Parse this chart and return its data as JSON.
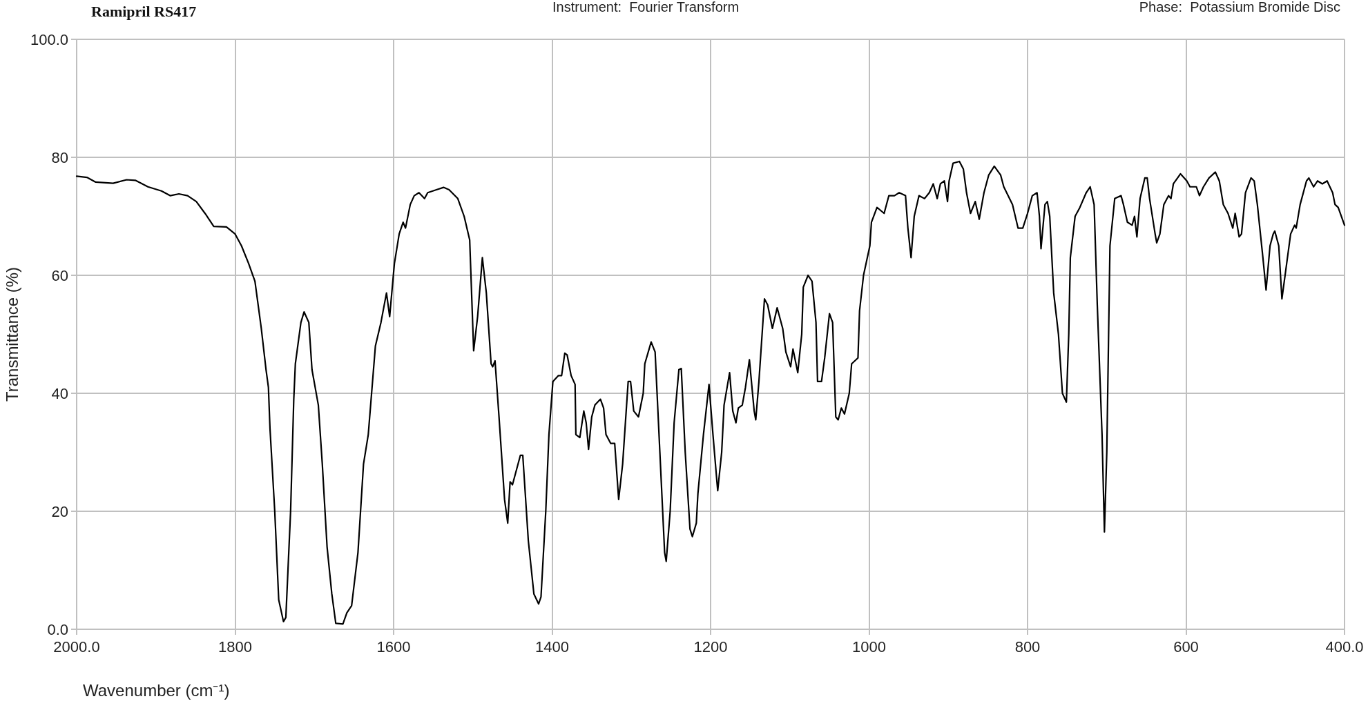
{
  "chart_data": {
    "type": "line",
    "title": "Ramipril RS417",
    "annotations": [
      "Instrument:  Fourier Transform",
      "Phase:  Potassium Bromide Disc"
    ],
    "xlabel": "Wavenumber (cm⁻¹)",
    "ylabel": "Transmittance (%)",
    "xlim": [
      2000,
      400
    ],
    "ylim": [
      0,
      100
    ],
    "xticks": [
      {
        "value": 2000,
        "label": "2000.0"
      },
      1800,
      1600,
      1400,
      1200,
      1000,
      800,
      600,
      {
        "value": 400,
        "label": "400.0"
      }
    ],
    "yticks": [
      {
        "value": 0,
        "label": "0.0"
      },
      20,
      40,
      60,
      80,
      {
        "value": 100,
        "label": "100.0"
      }
    ],
    "grid": true,
    "marker": "none",
    "line_style": "solid",
    "series": [
      {
        "color": "#000000",
        "x": [
          2000,
          1987,
          1976,
          1954,
          1937,
          1926,
          1910,
          1893,
          1882,
          1871,
          1860,
          1849,
          1838,
          1827,
          1811,
          1800,
          1792,
          1783,
          1775,
          1772,
          1767,
          1761,
          1758,
          1756,
          1750,
          1745,
          1739,
          1736,
          1730,
          1726,
          1724,
          1717,
          1713,
          1707,
          1703,
          1695,
          1690,
          1684,
          1678,
          1673,
          1664,
          1659,
          1653,
          1645,
          1638,
          1632,
          1623,
          1616,
          1609,
          1605,
          1599,
          1593,
          1588,
          1585,
          1579,
          1574,
          1568,
          1561,
          1557,
          1546,
          1537,
          1530,
          1519,
          1511,
          1504,
          1499,
          1494,
          1488,
          1483,
          1477,
          1475,
          1472,
          1467,
          1460,
          1456,
          1453,
          1450,
          1440,
          1437,
          1430,
          1423,
          1417,
          1414,
          1408,
          1404,
          1399,
          1392,
          1388,
          1384,
          1381,
          1376,
          1371,
          1370,
          1365,
          1360,
          1357,
          1354,
          1350,
          1346,
          1339,
          1335,
          1332,
          1326,
          1321,
          1316,
          1311,
          1304,
          1301,
          1297,
          1291,
          1285,
          1283,
          1275,
          1270,
          1264,
          1258,
          1256,
          1251,
          1246,
          1240,
          1237,
          1232,
          1226,
          1223,
          1218,
          1216,
          1209,
          1202,
          1197,
          1192,
          1191,
          1186,
          1183,
          1176,
          1172,
          1168,
          1165,
          1160,
          1156,
          1151,
          1145,
          1143,
          1139,
          1132,
          1128,
          1122,
          1116,
          1109,
          1105,
          1099,
          1096,
          1090,
          1085,
          1083,
          1077,
          1072,
          1067,
          1065,
          1060,
          1056,
          1050,
          1046,
          1042,
          1039,
          1035,
          1031,
          1025,
          1022,
          1014,
          1012,
          1007,
          999,
          997,
          990,
          981,
          975,
          968,
          962,
          954,
          951,
          947,
          943,
          937,
          930,
          924,
          919,
          914,
          910,
          905,
          901,
          899,
          894,
          886,
          881,
          877,
          872,
          866,
          861,
          855,
          849,
          842,
          834,
          830,
          819,
          812,
          806,
          800,
          794,
          788,
          785,
          783,
          778,
          775,
          772,
          767,
          761,
          756,
          751,
          748,
          746,
          740,
          734,
          726,
          721,
          716,
          712,
          706,
          703,
          700,
          696,
          690,
          682,
          679,
          674,
          668,
          665,
          662,
          658,
          652,
          649,
          646,
          639,
          637,
          633,
          628,
          622,
          619,
          616,
          607,
          599,
          595,
          587,
          583,
          578,
          571,
          563,
          558,
          553,
          547,
          541,
          538,
          533,
          530,
          525,
          518,
          514,
          510,
          503,
          499,
          494,
          490,
          488,
          483,
          479,
          473,
          468,
          463,
          461,
          456,
          448,
          445,
          439,
          434,
          428,
          422,
          415,
          412,
          408,
          400
        ],
        "values": [
          76.8,
          76.6,
          75.8,
          75.6,
          76.2,
          76.1,
          75,
          74.3,
          73.5,
          73.8,
          73.5,
          72.5,
          70.5,
          68.3,
          68.2,
          67,
          65,
          62,
          59,
          56,
          51,
          44,
          41,
          34,
          20,
          5,
          1.3,
          2,
          20,
          39,
          45,
          52,
          53.8,
          52,
          44,
          38,
          28,
          14,
          6,
          1,
          0.9,
          2.8,
          4,
          13,
          28,
          33,
          48,
          52,
          57,
          53,
          62,
          67,
          69,
          68,
          72,
          73.5,
          74,
          73,
          74,
          74.5,
          74.9,
          74.5,
          73,
          70,
          66,
          47.2,
          53,
          63,
          57,
          45,
          44.5,
          45.5,
          36,
          22,
          18,
          25,
          24.5,
          29.5,
          29.5,
          15,
          6,
          4.3,
          5.5,
          20,
          33,
          42,
          43,
          43,
          46.8,
          46.5,
          43,
          41.5,
          33,
          32.5,
          37,
          35,
          30.5,
          36,
          38,
          39,
          37.5,
          33,
          31.5,
          31.5,
          22,
          28,
          42,
          42,
          37,
          36,
          40,
          45,
          48.7,
          47,
          30,
          13,
          11.5,
          20,
          35,
          44,
          44.2,
          30,
          17,
          15.7,
          18,
          23,
          33,
          41.5,
          33,
          25,
          23.5,
          30,
          38,
          43.5,
          37,
          35,
          37.5,
          38,
          41,
          45.7,
          37,
          35.5,
          42,
          56,
          55,
          51,
          54.5,
          51,
          47,
          44.5,
          47.5,
          43.5,
          50,
          58,
          60,
          59,
          52,
          42,
          42,
          46,
          53.5,
          52,
          36,
          35.5,
          37.5,
          36.5,
          40,
          45,
          46,
          54,
          60,
          65,
          69,
          71.5,
          70.5,
          73.5,
          73.5,
          74,
          73.5,
          68,
          63,
          70,
          73.5,
          73,
          74,
          75.5,
          73,
          75.5,
          76,
          72.5,
          76,
          79,
          79.3,
          78,
          74,
          70.5,
          72.5,
          69.5,
          74,
          77,
          78.5,
          77,
          75,
          72,
          68,
          68,
          70.5,
          73.5,
          74,
          70,
          64.5,
          72,
          72.5,
          70,
          57,
          50,
          40,
          38.5,
          50,
          63,
          70,
          71.5,
          74,
          75,
          72,
          55,
          33,
          16.5,
          30,
          65,
          73,
          73.5,
          72,
          69,
          68.5,
          70,
          66.5,
          73,
          76.5,
          76.5,
          73,
          67,
          65.5,
          67,
          72,
          73.5,
          73,
          75.5,
          77.2,
          76,
          75,
          75,
          73.5,
          75,
          76.5,
          77.5,
          76,
          72,
          70.5,
          68,
          70.5,
          66.5,
          67,
          74,
          76.5,
          76,
          72,
          63,
          57.5,
          65,
          67,
          67.5,
          65,
          56,
          62,
          67,
          68.5,
          68,
          72,
          76,
          76.5,
          75,
          76,
          75.5,
          76,
          74,
          72,
          71.5,
          68.5
        ]
      }
    ]
  }
}
